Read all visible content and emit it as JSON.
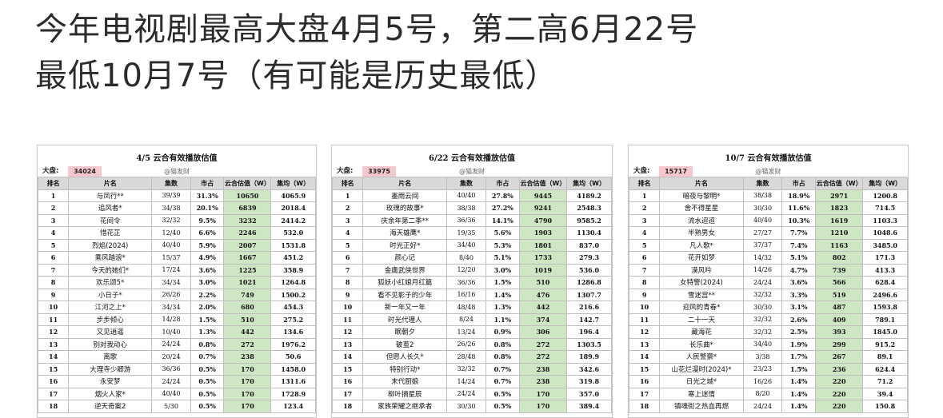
{
  "headline": {
    "line1": "今年电视剧最高大盘4月5号，第二高6月22号",
    "line2": "最低10月7号（有可能是历史最低）"
  },
  "columns": [
    "排名",
    "片名",
    "集数",
    "市占",
    "云合估值（W）",
    "集均（W）"
  ],
  "sheets": [
    {
      "title": "4/5 云合有效播放估值",
      "dapan_label": "大盘:",
      "dapan_value": "34024",
      "watermark": "@猫发财",
      "rows": [
        {
          "rank": "1",
          "name": "与凤行**",
          "eps": "39/39",
          "share": "31.3%",
          "cloud": "10650",
          "avg": "4065.9"
        },
        {
          "rank": "2",
          "name": "追风者*",
          "eps": "34/38",
          "share": "20.1%",
          "cloud": "6839",
          "avg": "2018.4"
        },
        {
          "rank": "3",
          "name": "花间令",
          "eps": "32/32",
          "share": "9.5%",
          "cloud": "3232",
          "avg": "2414.2"
        },
        {
          "rank": "4",
          "name": "惜花芷",
          "eps": "12/40",
          "share": "6.6%",
          "cloud": "2246",
          "avg": "532.0"
        },
        {
          "rank": "5",
          "name": "烈焰(2024)",
          "eps": "40/40",
          "share": "5.9%",
          "cloud": "2007",
          "avg": "1531.8"
        },
        {
          "rank": "6",
          "name": "乘风踏浪*",
          "eps": "15/37",
          "share": "4.9%",
          "cloud": "1667",
          "avg": "451.2"
        },
        {
          "rank": "7",
          "name": "今天的她们*",
          "eps": "17/24",
          "share": "3.6%",
          "cloud": "1225",
          "avg": "358.9"
        },
        {
          "rank": "8",
          "name": "欢乐颂5*",
          "eps": "34/34",
          "share": "3.0%",
          "cloud": "1021",
          "avg": "1264.8"
        },
        {
          "rank": "9",
          "name": "小日子*",
          "eps": "26/26",
          "share": "2.2%",
          "cloud": "749",
          "avg": "1500.2"
        },
        {
          "rank": "10",
          "name": "江河之上*",
          "eps": "34/34",
          "share": "2.0%",
          "cloud": "680",
          "avg": "454.3"
        },
        {
          "rank": "11",
          "name": "步步倾心",
          "eps": "14/28",
          "share": "1.5%",
          "cloud": "510",
          "avg": "275.2"
        },
        {
          "rank": "12",
          "name": "又见逍遥",
          "eps": "10/40",
          "share": "1.3%",
          "cloud": "442",
          "avg": "134.6"
        },
        {
          "rank": "13",
          "name": "别对我动心",
          "eps": "24/24",
          "share": "0.8%",
          "cloud": "272",
          "avg": "1976.2"
        },
        {
          "rank": "14",
          "name": "离歌",
          "eps": "20/24",
          "share": "0.7%",
          "cloud": "238",
          "avg": "50.6"
        },
        {
          "rank": "15",
          "name": "大理寺少卿游",
          "eps": "36/36",
          "share": "0.5%",
          "cloud": "170",
          "avg": "1458.0"
        },
        {
          "rank": "16",
          "name": "永安梦",
          "eps": "24/24",
          "share": "0.5%",
          "cloud": "170",
          "avg": "1311.6"
        },
        {
          "rank": "17",
          "name": "烟火人家*",
          "eps": "40/40",
          "share": "0.5%",
          "cloud": "170",
          "avg": "1728.9"
        },
        {
          "rank": "18",
          "name": "逆天奇案2",
          "eps": "5/30",
          "share": "0.5%",
          "cloud": "170",
          "avg": "123.4"
        }
      ]
    },
    {
      "title": "6/22 云合有效播放估值",
      "dapan_label": "大盘:",
      "dapan_value": "33975",
      "watermark": "@猫发财",
      "rows": [
        {
          "rank": "1",
          "name": "墨雨云间",
          "eps": "40/40",
          "share": "27.8%",
          "cloud": "9445",
          "avg": "4189.2"
        },
        {
          "rank": "2",
          "name": "玫瑰的故事*",
          "eps": "38/38",
          "share": "27.2%",
          "cloud": "9241",
          "avg": "2548.3"
        },
        {
          "rank": "3",
          "name": "庆余年第二季**",
          "eps": "36/36",
          "share": "14.1%",
          "cloud": "4790",
          "avg": "9585.2"
        },
        {
          "rank": "4",
          "name": "海天雄鹰*",
          "eps": "19/35",
          "share": "5.6%",
          "cloud": "1903",
          "avg": "1130.4"
        },
        {
          "rank": "5",
          "name": "时光正好*",
          "eps": "34/40",
          "share": "5.3%",
          "cloud": "1801",
          "avg": "837.0"
        },
        {
          "rank": "6",
          "name": "颜心记",
          "eps": "8/40",
          "share": "5.1%",
          "cloud": "1733",
          "avg": "279.3"
        },
        {
          "rank": "7",
          "name": "金庸武侠世界",
          "eps": "12/20",
          "share": "3.0%",
          "cloud": "1019",
          "avg": "536.0"
        },
        {
          "rank": "8",
          "name": "狐妖小红娘月红篇",
          "eps": "36/36",
          "share": "1.5%",
          "cloud": "510",
          "avg": "1286.8"
        },
        {
          "rank": "9",
          "name": "看不见影子的少年",
          "eps": "16/16",
          "share": "1.4%",
          "cloud": "476",
          "avg": "1307.7"
        },
        {
          "rank": "10",
          "name": "新一年又一年",
          "eps": "48/48",
          "share": "1.3%",
          "cloud": "442",
          "avg": "216.6"
        },
        {
          "rank": "11",
          "name": "时光代理人",
          "eps": "8/24",
          "share": "1.1%",
          "cloud": "374",
          "avg": "142.7"
        },
        {
          "rank": "12",
          "name": "眠朝夕",
          "eps": "13/24",
          "share": "0.9%",
          "cloud": "306",
          "avg": "196.4"
        },
        {
          "rank": "13",
          "name": "破茧2",
          "eps": "26/26",
          "share": "0.8%",
          "cloud": "272",
          "avg": "1303.5"
        },
        {
          "rank": "14",
          "name": "但愿人长久*",
          "eps": "28/48",
          "share": "0.8%",
          "cloud": "272",
          "avg": "189.9"
        },
        {
          "rank": "15",
          "name": "特别行动*",
          "eps": "32/32",
          "share": "0.7%",
          "cloud": "238",
          "avg": "342.6"
        },
        {
          "rank": "16",
          "name": "末代厨娘",
          "eps": "14/24",
          "share": "0.7%",
          "cloud": "238",
          "avg": "319.8"
        },
        {
          "rank": "17",
          "name": "柳叶摘星辰",
          "eps": "24/24",
          "share": "0.5%",
          "cloud": "170",
          "avg": "357.0"
        },
        {
          "rank": "18",
          "name": "家族荣耀之继承者",
          "eps": "30/30",
          "share": "0.5%",
          "cloud": "170",
          "avg": "389.4"
        }
      ]
    },
    {
      "title": "10/7 云合有效播放估值",
      "dapan_label": "大盘:",
      "dapan_value": "15717",
      "watermark": "@猫发财",
      "rows": [
        {
          "rank": "1",
          "name": "暗夜与黎明*",
          "eps": "38/38",
          "share": "18.9%",
          "cloud": "2971",
          "avg": "1200.8"
        },
        {
          "rank": "2",
          "name": "舍不得星星",
          "eps": "30/30",
          "share": "11.6%",
          "cloud": "1823",
          "avg": "714.5"
        },
        {
          "rank": "3",
          "name": "流水迢迢",
          "eps": "40/40",
          "share": "10.3%",
          "cloud": "1619",
          "avg": "1103.3"
        },
        {
          "rank": "4",
          "name": "半熟男女",
          "eps": "27/27",
          "share": "7.7%",
          "cloud": "1210",
          "avg": "1048.6"
        },
        {
          "rank": "5",
          "name": "凡人歌*",
          "eps": "37/37",
          "share": "7.4%",
          "cloud": "1163",
          "avg": "3485.0"
        },
        {
          "rank": "6",
          "name": "花开如梦",
          "eps": "14/32",
          "share": "5.1%",
          "cloud": "802",
          "avg": "171.3"
        },
        {
          "rank": "7",
          "name": "漠风吟",
          "eps": "14/26",
          "share": "4.7%",
          "cloud": "739",
          "avg": "413.3"
        },
        {
          "rank": "8",
          "name": "女特警(2024)",
          "eps": "24/24",
          "share": "3.6%",
          "cloud": "566",
          "avg": "628.4"
        },
        {
          "rank": "9",
          "name": "雪迷宫**",
          "eps": "32/32",
          "share": "3.3%",
          "cloud": "519",
          "avg": "2496.6"
        },
        {
          "rank": "10",
          "name": "迎风的青春*",
          "eps": "30/30",
          "share": "3.1%",
          "cloud": "487",
          "avg": "1593.8"
        },
        {
          "rank": "11",
          "name": "二十一天",
          "eps": "32/32",
          "share": "2.6%",
          "cloud": "409",
          "avg": "789.1"
        },
        {
          "rank": "12",
          "name": "藏海花",
          "eps": "32/32",
          "share": "2.5%",
          "cloud": "393",
          "avg": "1845.0"
        },
        {
          "rank": "13",
          "name": "长乐曲*",
          "eps": "34/40",
          "share": "1.9%",
          "cloud": "299",
          "avg": "915.2"
        },
        {
          "rank": "14",
          "name": "人民警察*",
          "eps": "3/38",
          "share": "1.7%",
          "cloud": "267",
          "avg": "89.1"
        },
        {
          "rank": "15",
          "name": "山花烂漫时(2024)*",
          "eps": "23/23",
          "share": "1.5%",
          "cloud": "236",
          "avg": "624.4"
        },
        {
          "rank": "16",
          "name": "日光之城*",
          "eps": "16/26",
          "share": "1.4%",
          "cloud": "220",
          "avg": "71.2"
        },
        {
          "rank": "17",
          "name": "寒上迷情",
          "eps": "8/20",
          "share": "1.4%",
          "cloud": "220",
          "avg": "39.4"
        },
        {
          "rank": "18",
          "name": "镇魂街之热血再燃",
          "eps": "24/24",
          "share": "1.4%",
          "cloud": "220",
          "avg": "150.8"
        }
      ]
    }
  ]
}
